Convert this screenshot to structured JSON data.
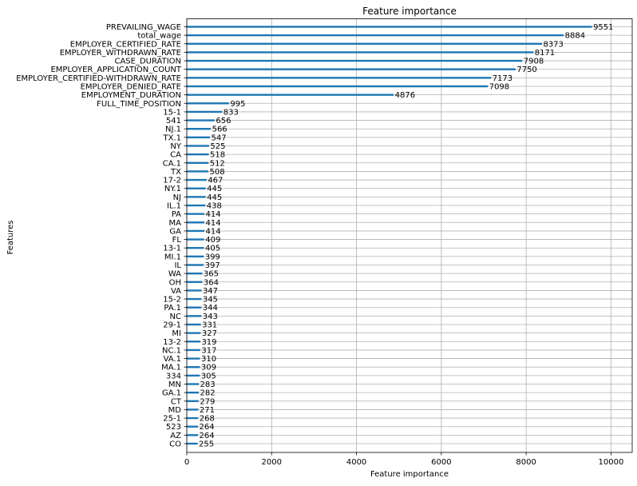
{
  "chart_data": {
    "type": "bar",
    "orientation": "horizontal",
    "title": "Feature importance",
    "xlabel": "Feature importance",
    "ylabel": "Features",
    "xlim": [
      0,
      10500
    ],
    "xticks": [
      0,
      2000,
      4000,
      6000,
      8000,
      10000
    ],
    "grid": true,
    "bar_color": "#1f77b4",
    "categories": [
      "PREVAILING_WAGE",
      "total_wage",
      "EMPLOYER_CERTIFIED_RATE",
      "EMPLOYER_WITHDRAWN_RATE",
      "CASE_DURATION",
      "EMPLOYER_APPLICATION_COUNT",
      "EMPLOYER_CERTIFIED-WITHDRAWN_RATE",
      "EMPLOYER_DENIED_RATE",
      "EMPLOYMENT_DURATION",
      "FULL_TIME_POSITION",
      "15-1",
      "541",
      "NJ.1",
      "TX.1",
      "NY",
      "CA",
      "CA.1",
      "TX",
      "17-2",
      "NY.1",
      "NJ",
      "IL.1",
      "PA",
      "MA",
      "GA",
      "FL",
      "13-1",
      "MI.1",
      "IL",
      "WA",
      "OH",
      "VA",
      "15-2",
      "PA.1",
      "NC",
      "29-1",
      "MI",
      "13-2",
      "NC.1",
      "VA.1",
      "MA.1",
      "334",
      "MN",
      "GA.1",
      "CT",
      "MD",
      "25-1",
      "523",
      "AZ",
      "CO"
    ],
    "values": [
      9551,
      8884,
      8373,
      8171,
      7908,
      7750,
      7173,
      7098,
      4876,
      995,
      833,
      656,
      566,
      547,
      525,
      518,
      512,
      508,
      467,
      445,
      445,
      438,
      414,
      414,
      414,
      409,
      405,
      399,
      397,
      365,
      364,
      347,
      345,
      344,
      343,
      331,
      327,
      319,
      317,
      310,
      309,
      305,
      283,
      282,
      279,
      271,
      268,
      264,
      264,
      255
    ]
  }
}
